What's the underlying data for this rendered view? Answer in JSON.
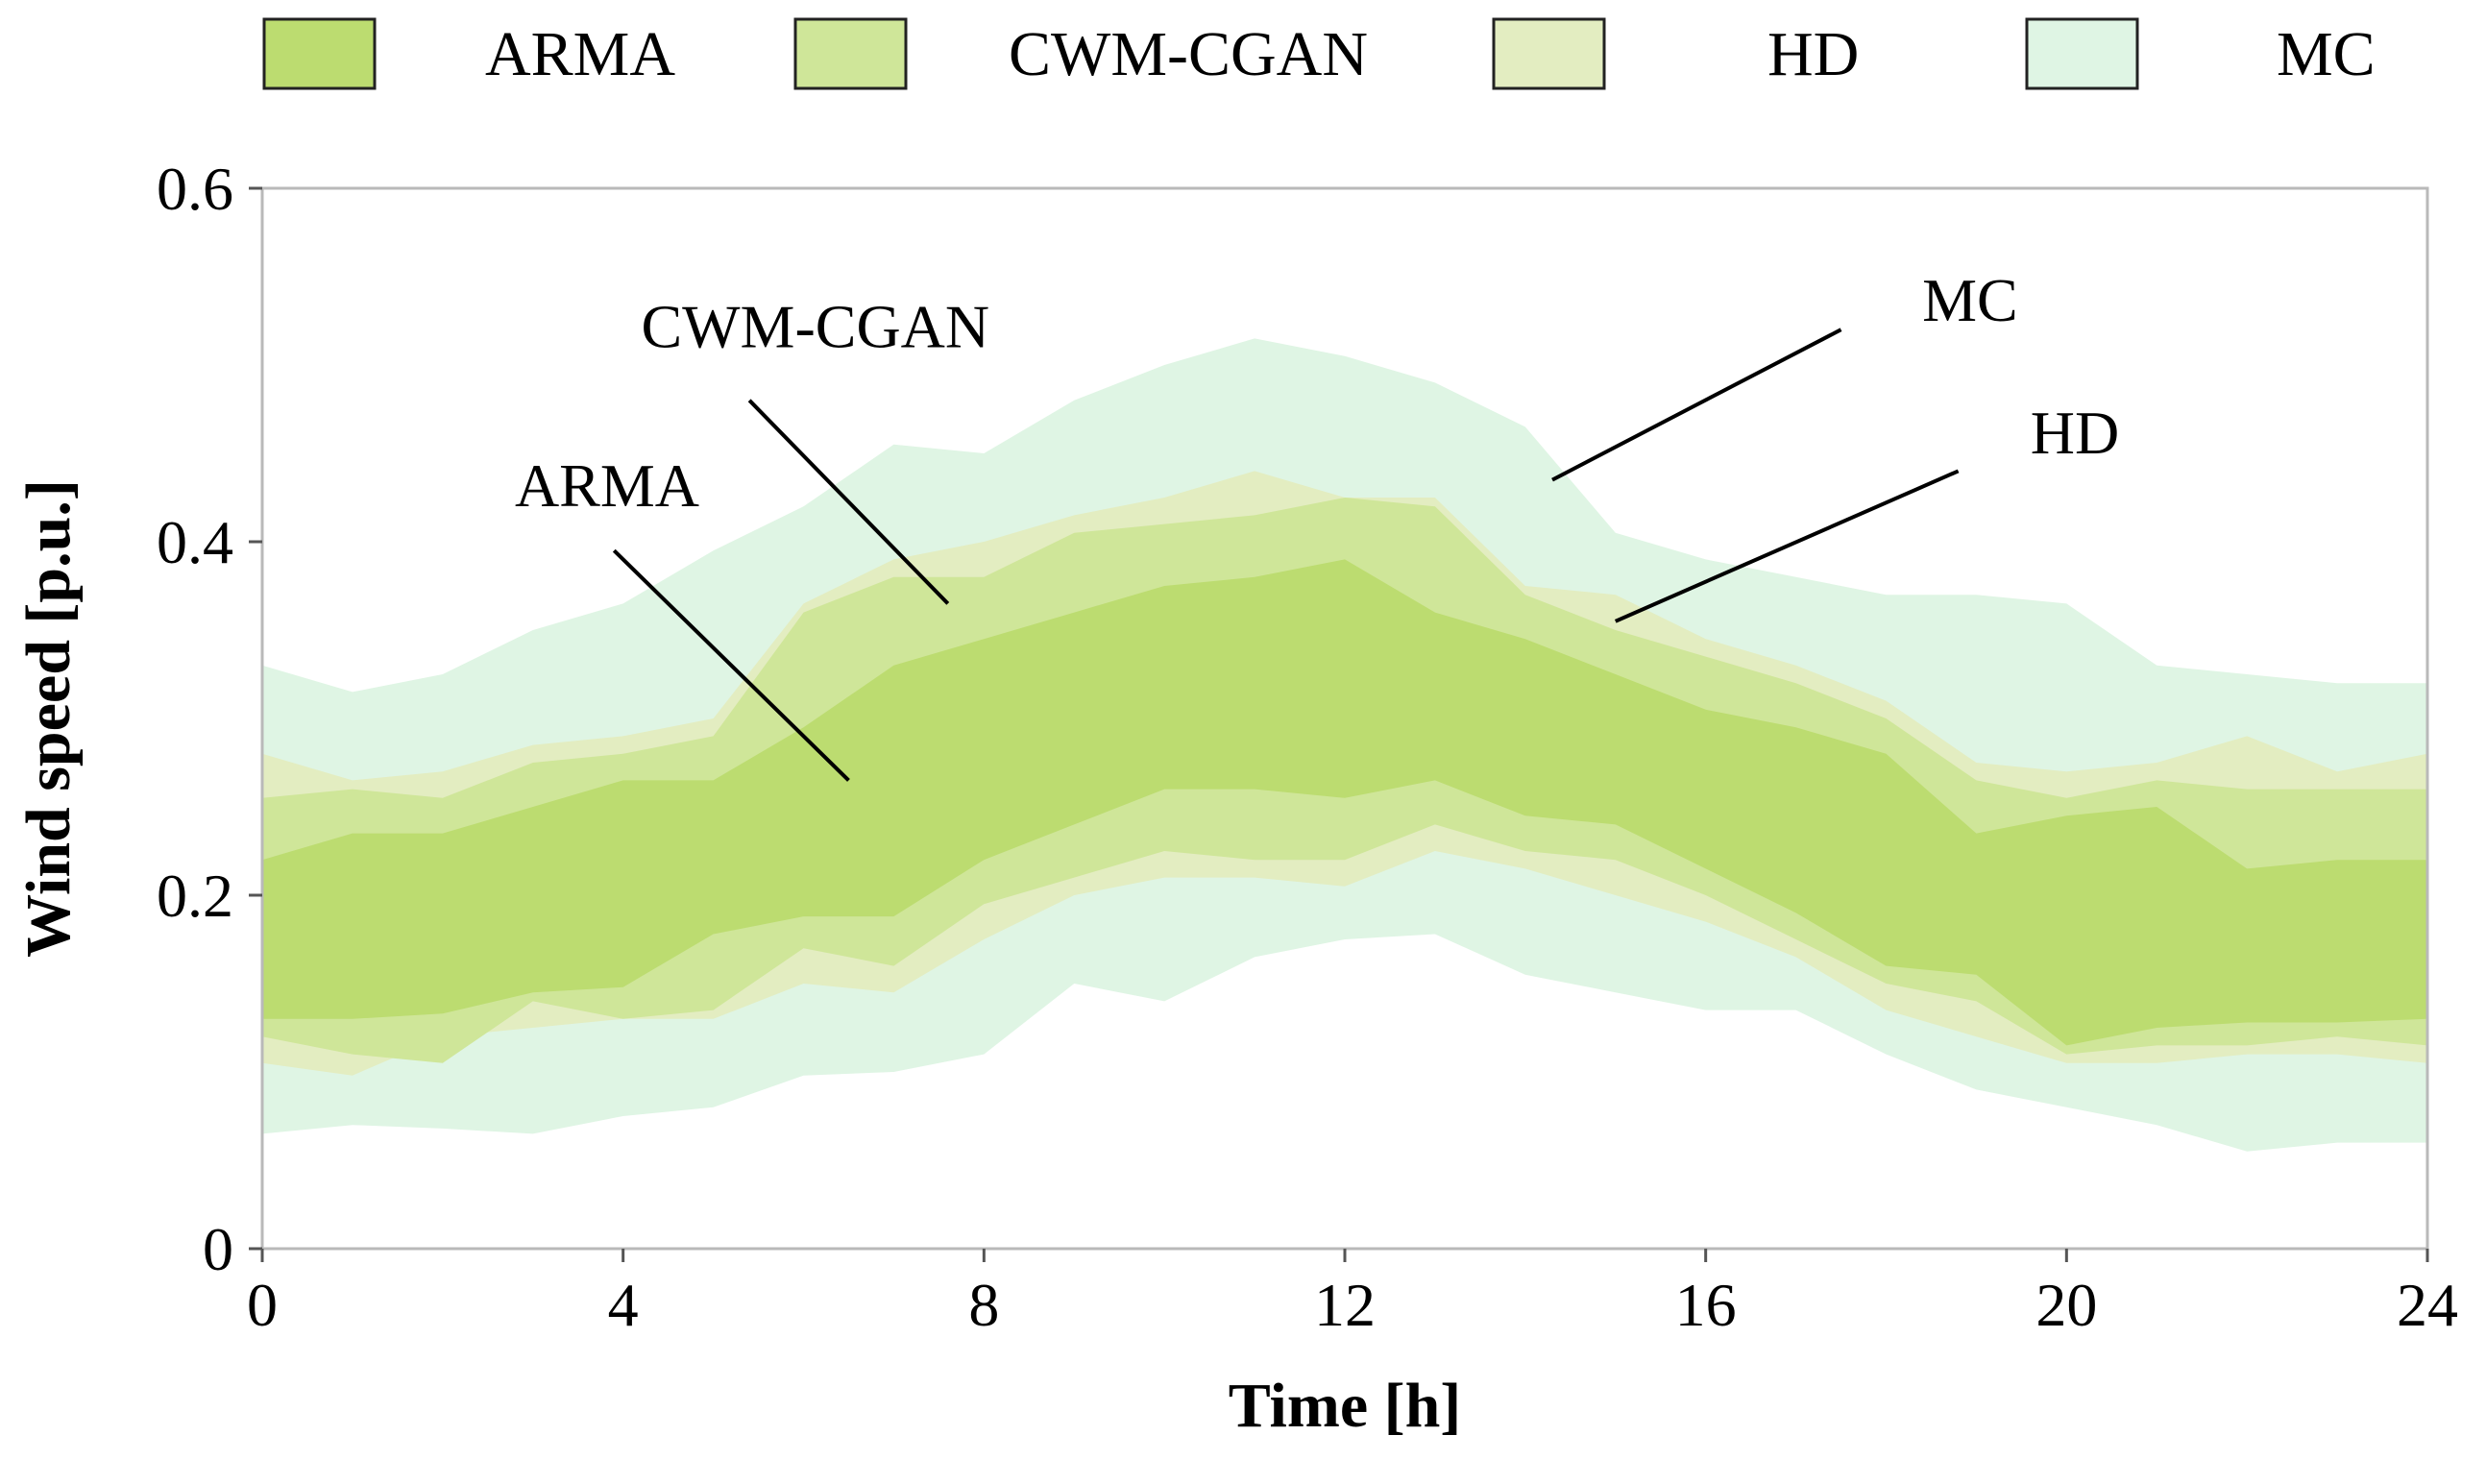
{
  "chart_data": {
    "type": "area",
    "title": "",
    "xlabel": "Time [h]",
    "ylabel": "Wind speed [p.u.]",
    "xlim": [
      0,
      24
    ],
    "ylim": [
      0,
      0.6
    ],
    "xticks": [
      0,
      4,
      8,
      12,
      16,
      20,
      24
    ],
    "xtick_labels": [
      "0",
      "4",
      "8",
      "12",
      "16",
      "20",
      "24"
    ],
    "yticks": [
      0,
      0.2,
      0.4,
      0.6
    ],
    "ytick_labels": [
      "0",
      "0.2",
      "0.4",
      "0.6"
    ],
    "grid": false,
    "legend_position": "top",
    "x": [
      0,
      1,
      2,
      3,
      4,
      5,
      6,
      7,
      8,
      9,
      10,
      11,
      12,
      13,
      14,
      15,
      16,
      17,
      18,
      19,
      20,
      21,
      22,
      23,
      24
    ],
    "series": [
      {
        "name": "MC",
        "color": "#dff5e4",
        "upper": [
          0.33,
          0.315,
          0.325,
          0.35,
          0.365,
          0.395,
          0.42,
          0.455,
          0.45,
          0.48,
          0.5,
          0.515,
          0.505,
          0.49,
          0.465,
          0.405,
          0.39,
          0.38,
          0.37,
          0.37,
          0.365,
          0.33,
          0.325,
          0.32,
          0.32
        ],
        "lower": [
          0.065,
          0.07,
          0.068,
          0.065,
          0.075,
          0.08,
          0.098,
          0.1,
          0.11,
          0.15,
          0.14,
          0.165,
          0.175,
          0.178,
          0.155,
          0.145,
          0.135,
          0.135,
          0.11,
          0.09,
          0.08,
          0.07,
          0.055,
          0.06,
          0.06
        ]
      },
      {
        "name": "HD",
        "color": "#e3edc1",
        "upper": [
          0.28,
          0.265,
          0.27,
          0.285,
          0.29,
          0.3,
          0.365,
          0.39,
          0.4,
          0.415,
          0.425,
          0.44,
          0.425,
          0.425,
          0.375,
          0.37,
          0.345,
          0.33,
          0.31,
          0.275,
          0.27,
          0.275,
          0.29,
          0.27,
          0.28
        ],
        "lower": [
          0.105,
          0.098,
          0.12,
          0.125,
          0.13,
          0.13,
          0.15,
          0.145,
          0.175,
          0.2,
          0.21,
          0.21,
          0.205,
          0.225,
          0.215,
          0.2,
          0.185,
          0.165,
          0.135,
          0.12,
          0.105,
          0.105,
          0.11,
          0.11,
          0.105
        ]
      },
      {
        "name": "CWM-CGAN",
        "color": "#cfe699",
        "upper": [
          0.255,
          0.26,
          0.255,
          0.275,
          0.28,
          0.29,
          0.36,
          0.38,
          0.38,
          0.405,
          0.41,
          0.415,
          0.425,
          0.42,
          0.37,
          0.35,
          0.335,
          0.32,
          0.3,
          0.265,
          0.255,
          0.265,
          0.26,
          0.26,
          0.26
        ],
        "lower": [
          0.12,
          0.11,
          0.105,
          0.14,
          0.13,
          0.135,
          0.17,
          0.16,
          0.195,
          0.21,
          0.225,
          0.22,
          0.22,
          0.24,
          0.225,
          0.22,
          0.2,
          0.175,
          0.15,
          0.14,
          0.11,
          0.115,
          0.115,
          0.12,
          0.115
        ]
      },
      {
        "name": "ARMA",
        "color": "#bcdc70",
        "upper": [
          0.22,
          0.235,
          0.235,
          0.25,
          0.265,
          0.265,
          0.295,
          0.33,
          0.345,
          0.36,
          0.375,
          0.38,
          0.39,
          0.36,
          0.345,
          0.325,
          0.305,
          0.295,
          0.28,
          0.235,
          0.245,
          0.25,
          0.215,
          0.22,
          0.22
        ],
        "lower": [
          0.13,
          0.13,
          0.133,
          0.145,
          0.148,
          0.178,
          0.188,
          0.188,
          0.22,
          0.24,
          0.26,
          0.26,
          0.255,
          0.265,
          0.245,
          0.24,
          0.215,
          0.19,
          0.16,
          0.155,
          0.115,
          0.125,
          0.128,
          0.128,
          0.13
        ]
      }
    ],
    "legend": [
      {
        "name": "ARMA",
        "color": "#bcdc70"
      },
      {
        "name": "CWM-CGAN",
        "color": "#cfe699"
      },
      {
        "name": "HD",
        "color": "#e3edc1"
      },
      {
        "name": "MC",
        "color": "#dff5e4"
      }
    ],
    "annotations": [
      {
        "text": "CWM-CGAN",
        "text_x": 4.2,
        "text_y": 0.51,
        "line_from": [
          5.4,
          0.48
        ],
        "line_to": [
          7.6,
          0.365
        ]
      },
      {
        "text": "ARMA",
        "text_x": 2.8,
        "text_y": 0.42,
        "line_from": [
          3.9,
          0.395
        ],
        "line_to": [
          6.5,
          0.265
        ]
      },
      {
        "text": "MC",
        "text_x": 18.4,
        "text_y": 0.525,
        "line_from": [
          17.5,
          0.52
        ],
        "line_to": [
          14.3,
          0.435
        ]
      },
      {
        "text": "HD",
        "text_x": 19.6,
        "text_y": 0.45,
        "line_from": [
          18.8,
          0.44
        ],
        "line_to": [
          15.0,
          0.355
        ]
      }
    ]
  }
}
